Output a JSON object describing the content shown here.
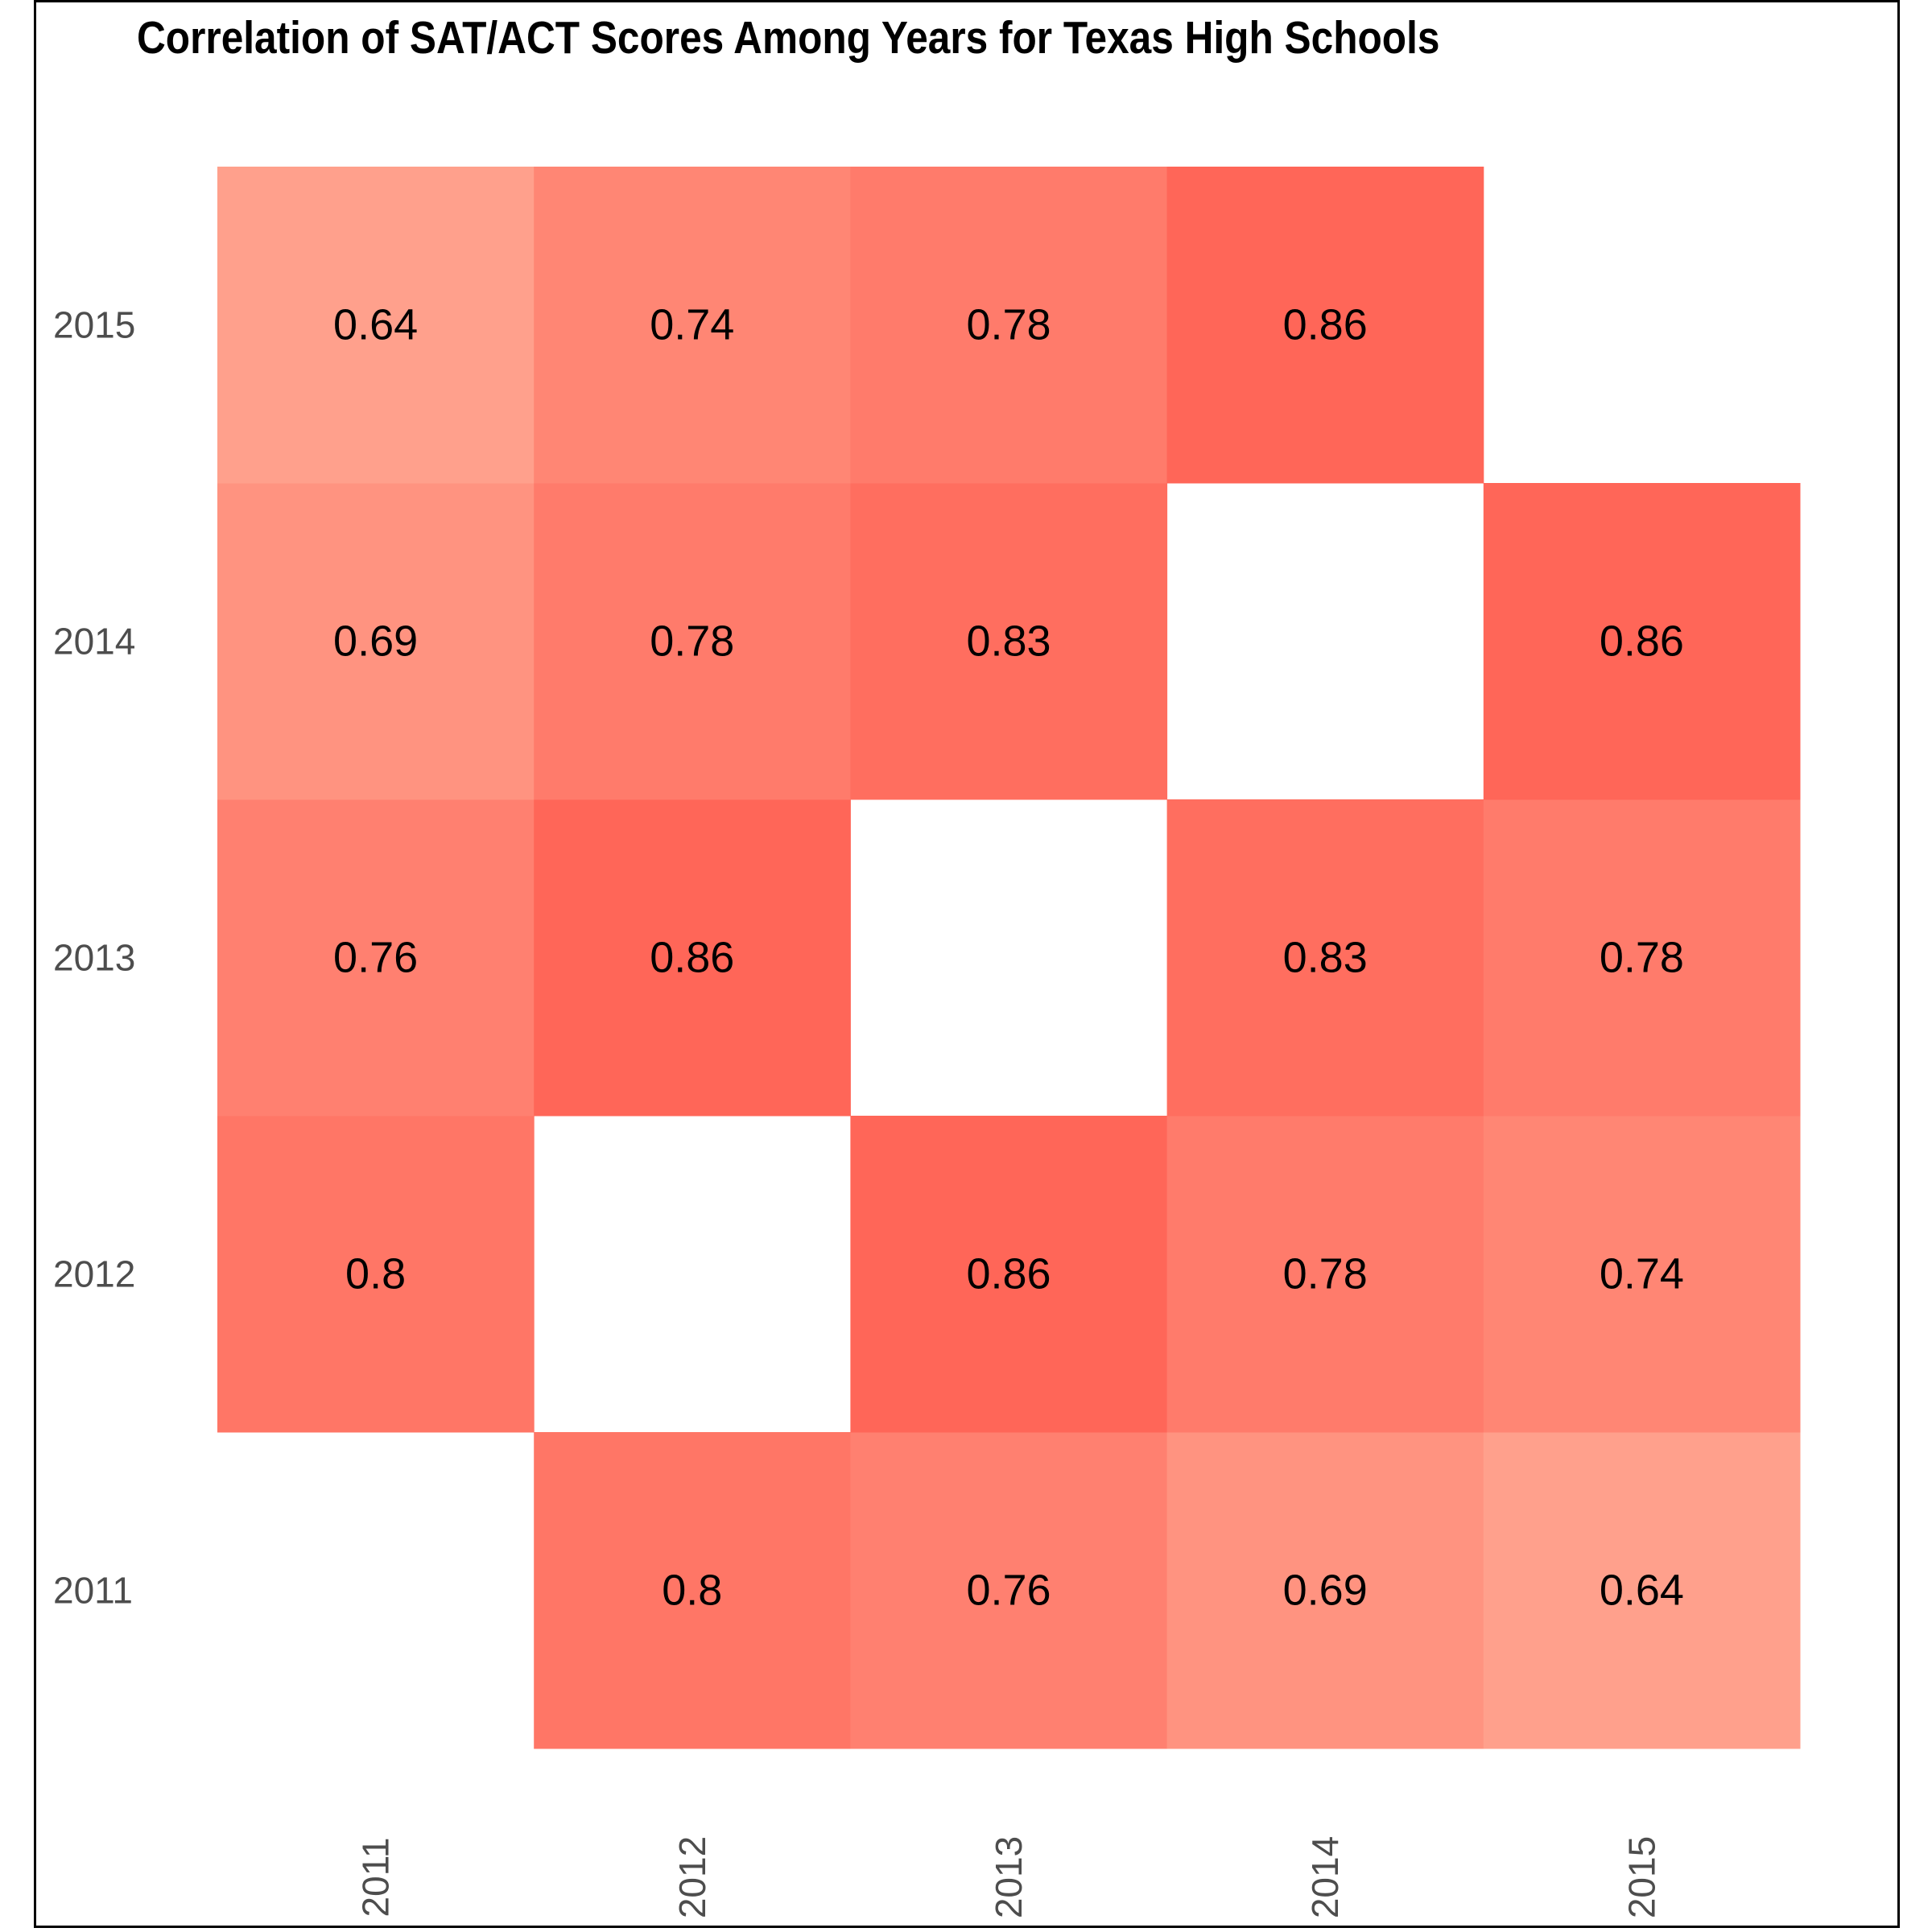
{
  "chart_data": {
    "type": "heatmap",
    "title": "Correlation of SAT/ACT Scores Among Years for Texas High Schools",
    "xlabel": "",
    "ylabel": "",
    "x_categories": [
      "2011",
      "2012",
      "2013",
      "2014",
      "2015"
    ],
    "y_categories": [
      "2011",
      "2012",
      "2013",
      "2014",
      "2015"
    ],
    "cells": [
      {
        "x": "2012",
        "y": "2011",
        "value": 0.8,
        "label": "0.8"
      },
      {
        "x": "2013",
        "y": "2011",
        "value": 0.76,
        "label": "0.76"
      },
      {
        "x": "2014",
        "y": "2011",
        "value": 0.69,
        "label": "0.69"
      },
      {
        "x": "2015",
        "y": "2011",
        "value": 0.64,
        "label": "0.64"
      },
      {
        "x": "2011",
        "y": "2012",
        "value": 0.8,
        "label": "0.8"
      },
      {
        "x": "2013",
        "y": "2012",
        "value": 0.86,
        "label": "0.86"
      },
      {
        "x": "2014",
        "y": "2012",
        "value": 0.78,
        "label": "0.78"
      },
      {
        "x": "2015",
        "y": "2012",
        "value": 0.74,
        "label": "0.74"
      },
      {
        "x": "2011",
        "y": "2013",
        "value": 0.76,
        "label": "0.76"
      },
      {
        "x": "2012",
        "y": "2013",
        "value": 0.86,
        "label": "0.86"
      },
      {
        "x": "2014",
        "y": "2013",
        "value": 0.83,
        "label": "0.83"
      },
      {
        "x": "2015",
        "y": "2013",
        "value": 0.78,
        "label": "0.78"
      },
      {
        "x": "2011",
        "y": "2014",
        "value": 0.69,
        "label": "0.69"
      },
      {
        "x": "2012",
        "y": "2014",
        "value": 0.78,
        "label": "0.78"
      },
      {
        "x": "2013",
        "y": "2014",
        "value": 0.83,
        "label": "0.83"
      },
      {
        "x": "2015",
        "y": "2014",
        "value": 0.86,
        "label": "0.86"
      },
      {
        "x": "2011",
        "y": "2015",
        "value": 0.64,
        "label": "0.64"
      },
      {
        "x": "2012",
        "y": "2015",
        "value": 0.74,
        "label": "0.74"
      },
      {
        "x": "2013",
        "y": "2015",
        "value": 0.78,
        "label": "0.78"
      },
      {
        "x": "2014",
        "y": "2015",
        "value": 0.86,
        "label": "0.86"
      }
    ],
    "color_scale": {
      "low_value": 0.64,
      "high_value": 0.86,
      "low_color": "#ffa08c",
      "high_color": "#ff6658"
    },
    "legend": "none",
    "grid": false
  }
}
